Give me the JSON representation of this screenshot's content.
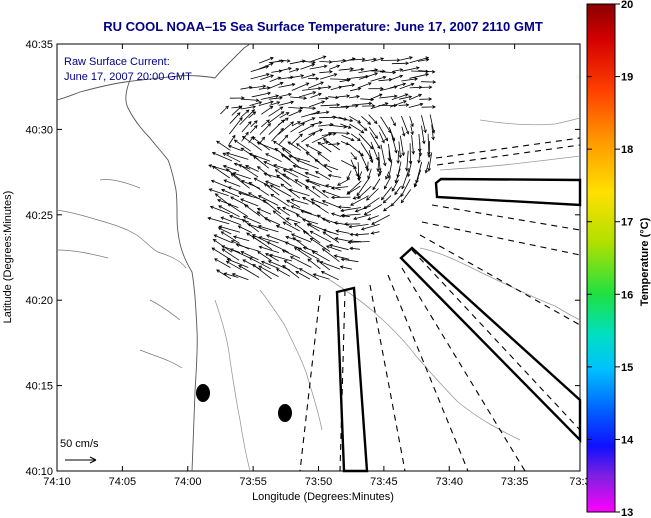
{
  "chart_data": {
    "type": "map",
    "title": "RU COOL   NOAA–15  Sea Surface Temperature:  June 17, 2007 2110 GMT",
    "annotation_lines": [
      "Raw Surface Current:",
      "June 17, 2007 20:00 GMT"
    ],
    "xlabel": "Longitude (Degrees:Minutes)",
    "ylabel": "Latitude (Degrees:Minutes)",
    "x_ticks": [
      "74:10",
      "74:05",
      "74:00",
      "73:55",
      "73:50",
      "73:45",
      "73:40",
      "73:35",
      "73:3"
    ],
    "y_ticks": [
      "40:35",
      "40:30",
      "40:25",
      "40:20",
      "40:15",
      "40:10"
    ],
    "xlim_minutes_west": [
      70,
      30
    ],
    "ylim_minutes_north": [
      10,
      35
    ],
    "scale_label": "50 cm/s",
    "colorbar": {
      "label": "Temperature (°C)",
      "ticks": [
        "20",
        "19",
        "18",
        "17",
        "16",
        "15",
        "14",
        "13"
      ],
      "range": [
        13,
        20
      ]
    },
    "grid": false
  }
}
